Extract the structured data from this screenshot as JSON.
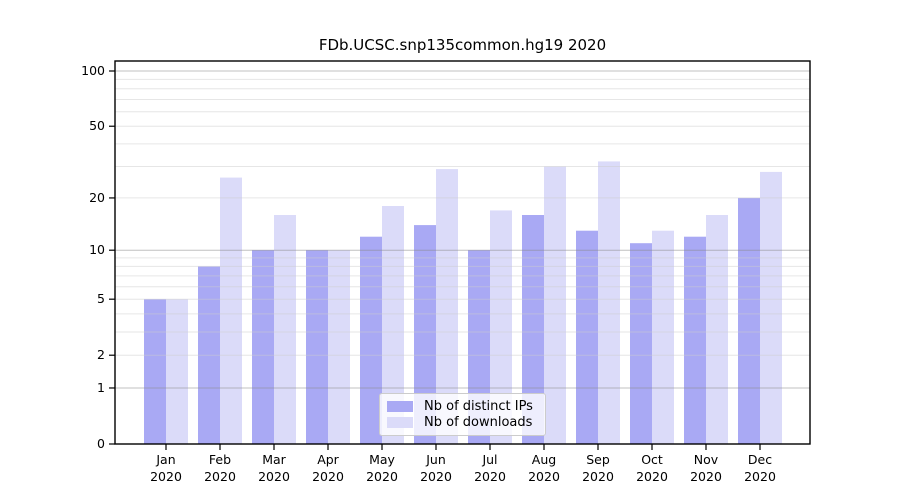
{
  "chart_data": {
    "type": "bar",
    "title": "FDb.UCSC.snp135common.hg19 2020",
    "months": [
      "Jan",
      "Feb",
      "Mar",
      "Apr",
      "May",
      "Jun",
      "Jul",
      "Aug",
      "Sep",
      "Oct",
      "Nov",
      "Dec"
    ],
    "year": "2020",
    "series": [
      {
        "name": "Nb of distinct IPs",
        "color": "#a9a9f4",
        "values": [
          5,
          8,
          10,
          10,
          12,
          14,
          10,
          16,
          13,
          11,
          12,
          20
        ]
      },
      {
        "name": "Nb of downloads",
        "color": "#dbdbf9",
        "values": [
          5,
          26,
          16,
          10,
          18,
          29,
          17,
          30,
          32,
          13,
          16,
          28
        ]
      }
    ],
    "y_axis": {
      "scale": "log1p",
      "tick_values": [
        0,
        1,
        2,
        5,
        10,
        20,
        50,
        100
      ],
      "tick_labels": [
        "0",
        "1",
        "2",
        "5",
        "10",
        "20",
        "50",
        "100"
      ],
      "major_gridlines": [
        1,
        10,
        100
      ],
      "minor_gridlines": [
        2,
        3,
        4,
        5,
        6,
        7,
        8,
        9,
        20,
        30,
        40,
        50,
        60,
        70,
        80,
        90
      ],
      "ylim": [
        0,
        100
      ]
    },
    "legend": {
      "position": "inside-bottom-center"
    },
    "grid": "on",
    "xlabel": "",
    "ylabel": ""
  }
}
